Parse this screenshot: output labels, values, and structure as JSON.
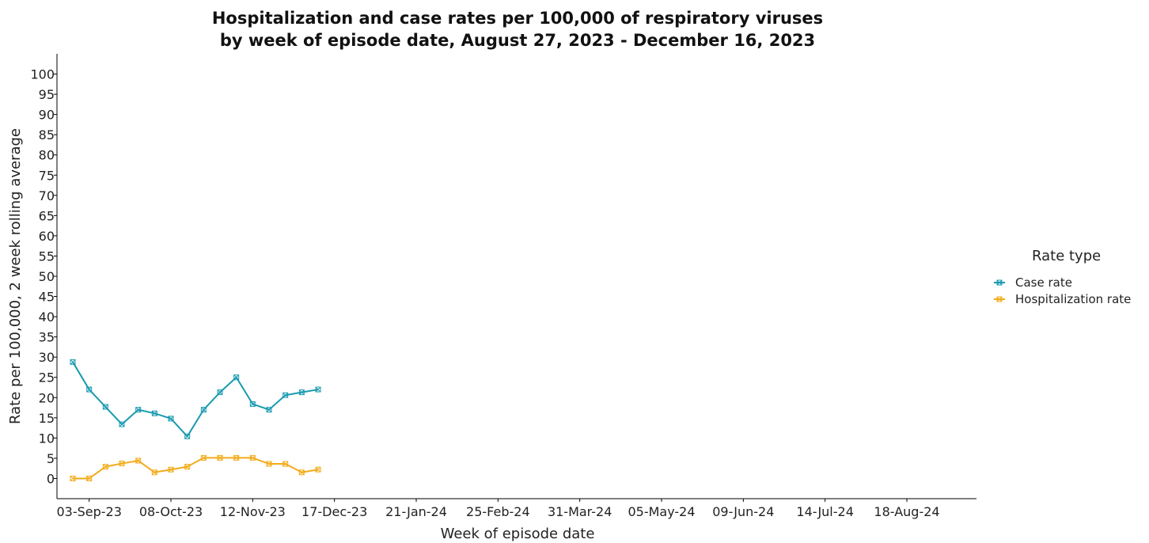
{
  "chart_data": {
    "type": "line",
    "title_lines": [
      "Hospitalization and case rates per 100,000 of respiratory viruses",
      "by week of episode date, August 27, 2023 - December 16, 2023"
    ],
    "xlabel": "Week of episode date",
    "ylabel": "Rate per 100,000, 2 week rolling average",
    "ylim": [
      -5,
      105
    ],
    "yticks": [
      0,
      5,
      10,
      15,
      20,
      25,
      30,
      35,
      40,
      45,
      50,
      55,
      60,
      65,
      70,
      75,
      80,
      85,
      90,
      95,
      100
    ],
    "xlim": [
      "2023-08-27",
      "2024-09-08"
    ],
    "xticks": [
      {
        "date": "2023-09-03",
        "label": "03-Sep-23"
      },
      {
        "date": "2023-10-08",
        "label": "08-Oct-23"
      },
      {
        "date": "2023-11-12",
        "label": "12-Nov-23"
      },
      {
        "date": "2023-12-17",
        "label": "17-Dec-23"
      },
      {
        "date": "2024-01-21",
        "label": "21-Jan-24"
      },
      {
        "date": "2024-02-25",
        "label": "25-Feb-24"
      },
      {
        "date": "2024-03-31",
        "label": "31-Mar-24"
      },
      {
        "date": "2024-05-05",
        "label": "05-May-24"
      },
      {
        "date": "2024-06-09",
        "label": "09-Jun-24"
      },
      {
        "date": "2024-07-14",
        "label": "14-Jul-24"
      },
      {
        "date": "2024-08-18",
        "label": "18-Aug-24"
      }
    ],
    "legend": {
      "title": "Rate type",
      "position": "right"
    },
    "grid": false,
    "x": [
      "2023-08-27",
      "2023-09-03",
      "2023-09-10",
      "2023-09-17",
      "2023-09-24",
      "2023-10-01",
      "2023-10-08",
      "2023-10-15",
      "2023-10-22",
      "2023-10-29",
      "2023-11-05",
      "2023-11-12",
      "2023-11-19",
      "2023-11-26",
      "2023-12-03",
      "2023-12-10"
    ],
    "series": [
      {
        "name": "Case rate",
        "color": "#1a9bb0",
        "values": [
          28.8,
          22.0,
          17.7,
          13.4,
          17.0,
          16.1,
          14.8,
          10.4,
          17.0,
          21.3,
          25.0,
          18.4,
          17.0,
          20.6,
          21.3,
          22.0
        ]
      },
      {
        "name": "Hospitalization rate",
        "color": "#f2ac1b",
        "values": [
          0.0,
          0.0,
          2.9,
          3.7,
          4.4,
          1.5,
          2.2,
          2.9,
          5.1,
          5.1,
          5.1,
          5.1,
          3.6,
          3.6,
          1.5,
          2.2
        ]
      }
    ]
  }
}
